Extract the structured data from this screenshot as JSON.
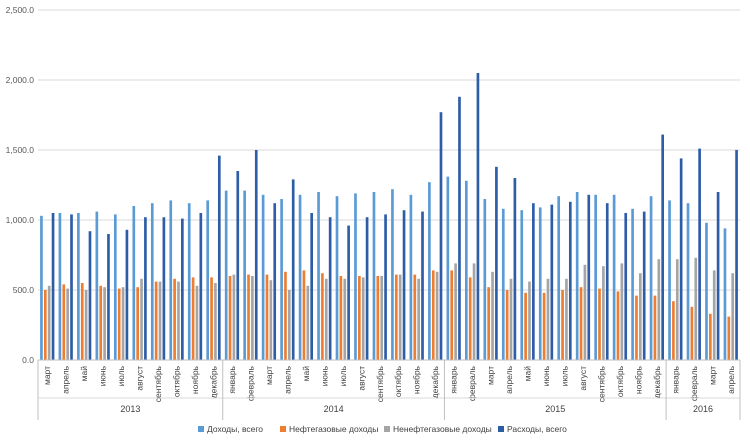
{
  "chart_data": {
    "type": "bar",
    "yticks": [
      "0.0",
      "500.0",
      "1,000.0",
      "1,500.0",
      "2,000.0",
      "2,500.0"
    ],
    "ylim": [
      0,
      2500
    ],
    "grid": true,
    "legend_position": "bottom",
    "categories": [
      "март",
      "апрель",
      "май",
      "июнь",
      "июль",
      "август",
      "сентябрь",
      "октябрь",
      "ноябрь",
      "декабрь",
      "январь",
      "февраль",
      "март",
      "апрель",
      "май",
      "июнь",
      "июль",
      "август",
      "сентябрь",
      "октябрь",
      "ноябрь",
      "декабрь",
      "январь",
      "февраль",
      "март",
      "апрель",
      "май",
      "июнь",
      "июль",
      "август",
      "сентябрь",
      "октябрь",
      "ноябрь",
      "декабрь",
      "январь",
      "февраль",
      "март",
      "апрель"
    ],
    "groups": [
      {
        "label": "2013",
        "count": 10
      },
      {
        "label": "2014",
        "count": 12
      },
      {
        "label": "2015",
        "count": 12
      },
      {
        "label": "2016",
        "count": 4
      }
    ],
    "series": [
      {
        "name": "Доходы, всего",
        "color": "#5b9bd5",
        "values": [
          1030,
          1050,
          1050,
          1060,
          1040,
          1100,
          1120,
          1140,
          1120,
          1140,
          1210,
          1210,
          1180,
          1150,
          1180,
          1200,
          1170,
          1190,
          1200,
          1220,
          1180,
          1270,
          1310,
          1280,
          1150,
          1080,
          1070,
          1090,
          1170,
          1200,
          1180,
          1180,
          1080,
          1170,
          1140,
          1120,
          980,
          940
        ]
      },
      {
        "name": "Нефтегазовые доходы",
        "color": "#ed7d31",
        "values": [
          500,
          540,
          550,
          530,
          510,
          520,
          560,
          580,
          590,
          590,
          600,
          610,
          610,
          630,
          640,
          620,
          600,
          600,
          600,
          610,
          610,
          640,
          640,
          590,
          520,
          500,
          480,
          480,
          500,
          520,
          510,
          490,
          460,
          460,
          420,
          380,
          330,
          310
        ]
      },
      {
        "name": "Ненефтегазовые доходы",
        "color": "#a5a5a5",
        "values": [
          530,
          510,
          500,
          520,
          520,
          580,
          560,
          560,
          530,
          550,
          610,
          600,
          570,
          500,
          530,
          580,
          580,
          590,
          600,
          610,
          580,
          630,
          690,
          690,
          630,
          580,
          560,
          580,
          580,
          680,
          670,
          690,
          620,
          720,
          720,
          730,
          640,
          620
        ]
      },
      {
        "name": "Расходы, всего",
        "color": "#2e5da8",
        "values": [
          1050,
          1040,
          920,
          900,
          930,
          1020,
          1020,
          1010,
          1050,
          1460,
          1350,
          1500,
          1120,
          1290,
          1050,
          1020,
          960,
          1020,
          1040,
          1070,
          1060,
          1770,
          1880,
          2050,
          1380,
          1300,
          1120,
          1110,
          1130,
          1180,
          1120,
          1050,
          1060,
          1610,
          1440,
          1510,
          1200,
          1500
        ]
      }
    ]
  }
}
